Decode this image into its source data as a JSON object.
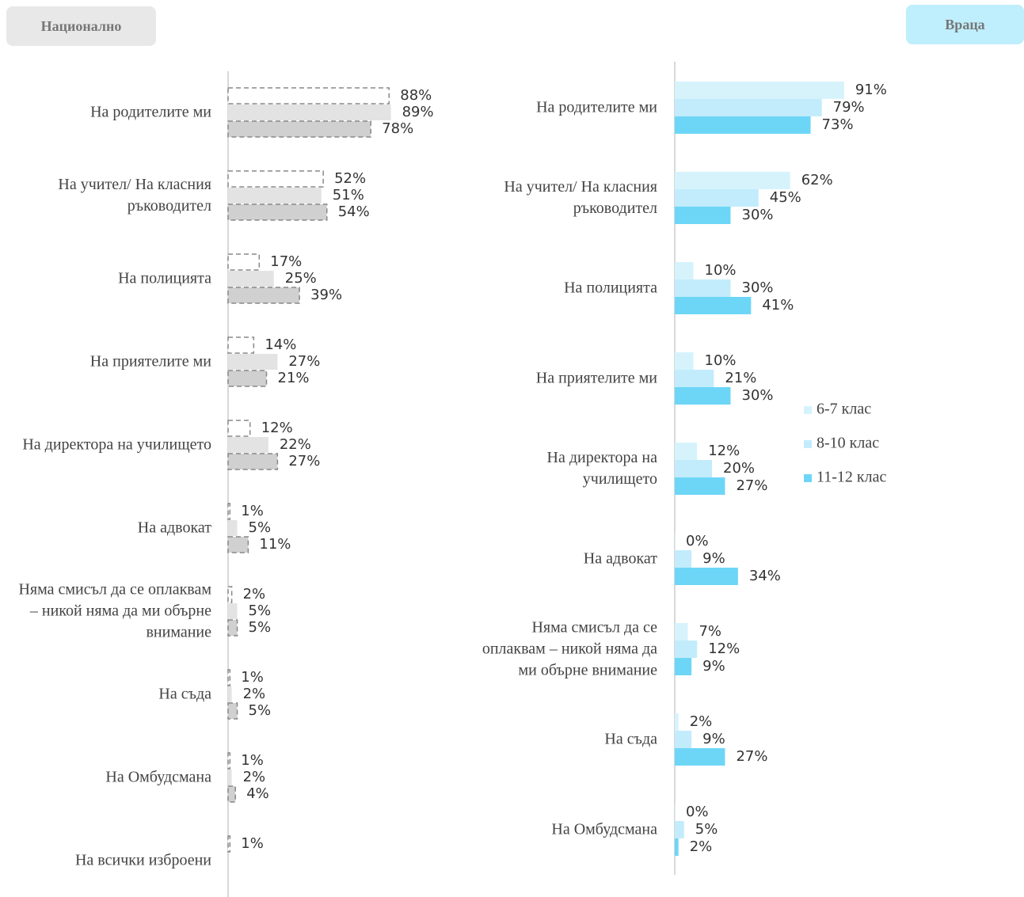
{
  "tabs": [
    "Национално",
    "Враца"
  ],
  "chart_data": [
    {
      "type": "bar",
      "categories": [
        "На родителите ми",
        "На учител/ На класния ръководител",
        "На полицията",
        "На приятелите ми",
        "На директора на училището",
        "На адвокат",
        "Няма смисъл да се оплаквам – никой няма да ми обърне внимание",
        "На съда",
        "На Омбудсмана",
        "На всички изброени"
      ],
      "xlim": [
        0,
        100
      ],
      "series": [
        {
          "color": "#ffffff",
          "values": [
            88,
            52,
            17,
            14,
            12,
            1,
            2,
            1,
            1,
            1
          ],
          "value_labels": [
            "88%",
            "52%",
            "17%",
            "14%",
            "12%",
            "1%",
            "2%",
            "1%",
            "1%",
            "1%"
          ]
        },
        {
          "color": "#e3e3e3",
          "values": [
            89,
            51,
            25,
            27,
            22,
            5,
            5,
            2,
            2,
            null
          ],
          "value_labels": [
            "89%",
            "51%",
            "25%",
            "27%",
            "22%",
            "5%",
            "5%",
            "2%",
            "2%",
            null
          ]
        },
        {
          "color": "#d0d0d0",
          "values": [
            78,
            54,
            39,
            21,
            27,
            11,
            5,
            5,
            4,
            null
          ],
          "value_labels": [
            "78%",
            "54%",
            "39%",
            "21%",
            "27%",
            "11%",
            "5%",
            "5%",
            "4%",
            null
          ]
        }
      ]
    },
    {
      "type": "bar",
      "categories": [
        "На родителите ми",
        "На учител/ На класния ръководител",
        "На полицията",
        "На приятелите ми",
        "На директора на училището",
        "На адвокат",
        "Няма смисъл да се оплаквам – никой няма да ми обърне внимание",
        "На съда",
        "На Омбудсмана"
      ],
      "xlim": [
        0,
        100
      ],
      "legend": "right",
      "series": [
        {
          "name": "6-7 клас",
          "color": "#d6f3fc",
          "values": [
            91,
            62,
            10,
            10,
            12,
            0,
            7,
            2,
            0
          ],
          "value_labels": [
            "91%",
            "62%",
            "10%",
            "10%",
            "12%",
            "0%",
            "7%",
            "2%",
            "0%"
          ]
        },
        {
          "name": "8-10 клас",
          "color": "#c2ecfb",
          "values": [
            79,
            45,
            30,
            21,
            20,
            9,
            12,
            9,
            5
          ],
          "value_labels": [
            "79%",
            "45%",
            "30%",
            "21%",
            "20%",
            "9%",
            "12%",
            "9%",
            "5%"
          ]
        },
        {
          "name": "11-12 клас",
          "color": "#6dd6f7",
          "values": [
            73,
            30,
            41,
            30,
            27,
            34,
            9,
            27,
            2
          ],
          "value_labels": [
            "73%",
            "30%",
            "41%",
            "30%",
            "27%",
            "34%",
            "9%",
            "27%",
            "2%"
          ]
        }
      ]
    }
  ]
}
